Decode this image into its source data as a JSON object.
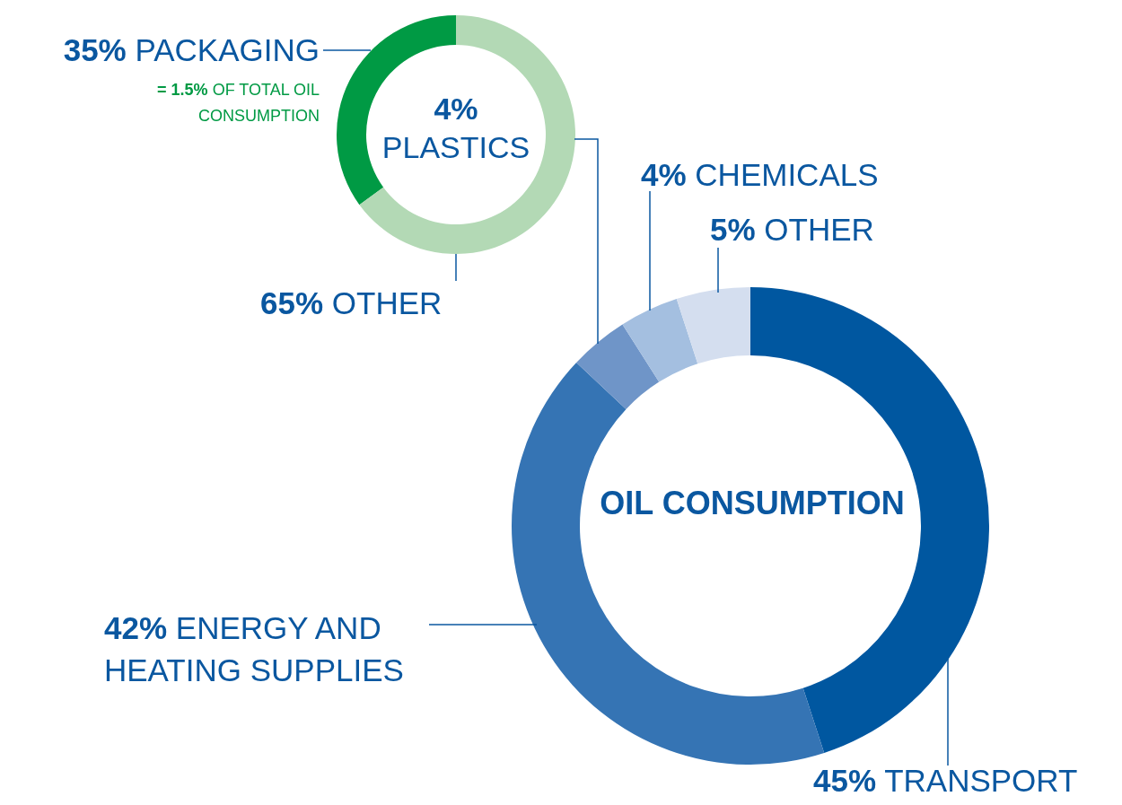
{
  "chart_data": [
    {
      "type": "donut",
      "title": "4% PLASTICS",
      "categories": [
        "PACKAGING",
        "OTHER"
      ],
      "values": [
        35,
        65
      ],
      "value_labels": [
        "35%",
        "65%"
      ],
      "colors": [
        "#009a44",
        "#b3d9b5"
      ],
      "annotations": [
        "= 1.5% OF TOTAL OIL CONSUMPTION"
      ]
    },
    {
      "type": "donut",
      "title": "OIL CONSUMPTION",
      "categories": [
        "TRANSPORT",
        "ENERGY AND HEATING SUPPLIES",
        null,
        "CHEMICALS",
        "OTHER"
      ],
      "values": [
        45,
        42,
        4,
        4,
        5
      ],
      "value_labels": [
        "45%",
        "42%",
        null,
        "4%",
        "5%"
      ],
      "colors": [
        "#0057a0",
        "#3574b4",
        "#6f95c8",
        "#a4bfe0",
        "#d4deef"
      ]
    }
  ]
}
